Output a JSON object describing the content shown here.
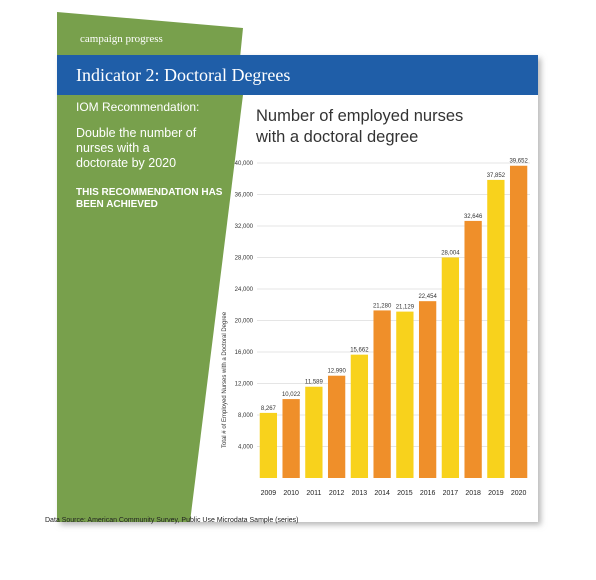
{
  "header": {
    "tag": "campaign progress",
    "title": "Indicator 2: Doctoral Degrees"
  },
  "sidebar": {
    "heading": "IOM Recommendation:",
    "text": "Double the number of nurses with a doctorate by 2020",
    "status": "THIS RECOMMENDATION HAS BEEN ACHIEVED"
  },
  "chart_data": {
    "type": "bar",
    "title": "Number of employed nurses with a doctoral degree",
    "y_label": "Total # of Employed Nurses with a Doctoral Degree",
    "categories": [
      "2009",
      "2010",
      "2011",
      "2012",
      "2013",
      "2014",
      "2015",
      "2016",
      "2017",
      "2018",
      "2019",
      "2020"
    ],
    "values": [
      8267,
      10022,
      11589,
      12990,
      15662,
      21280,
      21129,
      22454,
      28004,
      32646,
      37852,
      39652
    ],
    "value_labels": [
      "8,267",
      "10,022",
      "11,589",
      "12,990",
      "15,662",
      "21,280",
      "21,129",
      "22,454",
      "28,004",
      "32,646",
      "37,852",
      "39,652"
    ],
    "colors": [
      "#f8d21c",
      "#ef8f2a",
      "#f8d21c",
      "#ef8f2a",
      "#f8d21c",
      "#ef8f2a",
      "#f8d21c",
      "#ef8f2a",
      "#f8d21c",
      "#ef8f2a",
      "#f8d21c",
      "#ef8f2a"
    ],
    "ylim": [
      0,
      40000
    ],
    "yticks": [
      {
        "value": 4000,
        "label": "4,000"
      },
      {
        "value": 8000,
        "label": "8,000"
      },
      {
        "value": 12000,
        "label": "12,000"
      },
      {
        "value": 16000,
        "label": "16,000"
      },
      {
        "value": 20000,
        "label": "20,000"
      },
      {
        "value": 24000,
        "label": "24,000"
      },
      {
        "value": 28000,
        "label": "28,000"
      },
      {
        "value": 32000,
        "label": "32,000"
      },
      {
        "value": 36000,
        "label": "36,000"
      },
      {
        "value": 40000,
        "label": "40,000"
      }
    ],
    "grid": true
  },
  "footer": {
    "source": "Data Source: American Community Survey, Public Use Microdata Sample (series)"
  }
}
